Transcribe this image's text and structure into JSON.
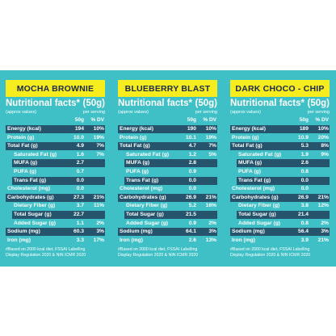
{
  "header": {
    "nutritional_facts": "Nutritional facts*",
    "serving": "(50g)",
    "approx": "(approx values)",
    "per_serving": "per serving",
    "col_amount": "50g",
    "col_dv": "% DV"
  },
  "footnote": {
    "line1": "#Based on 2000 kcal diet, FSSAI Labelling",
    "line2": "Display Regulation 2020 & NIN ICMR 2020"
  },
  "colors": {
    "band": "#3fc0c6",
    "title_bg": "#f6ec1e",
    "title_text": "#1a2a4a",
    "row_bar": "#26546c",
    "text": "#ffffff"
  },
  "products": [
    {
      "name": "MOCHA BROWNIE",
      "rows": [
        {
          "label": "Energy (kcal)",
          "value": "194",
          "dv": "10%"
        },
        {
          "label": "Protein (g)",
          "value": "10.0",
          "dv": "19%"
        },
        {
          "label": "Total Fat (g)",
          "value": "4.9",
          "dv": "7%"
        },
        {
          "label": "Saturated Fat (g)",
          "value": "1.6",
          "dv": "7%"
        },
        {
          "label": "MUFA (g)",
          "value": "2.7",
          "dv": ""
        },
        {
          "label": "PUFA (g)",
          "value": "0.7",
          "dv": ""
        },
        {
          "label": "Trans Fat (g)",
          "value": "0.0",
          "dv": ""
        },
        {
          "label": "Cholesterol (mg)",
          "value": "0.0",
          "dv": ""
        },
        {
          "label": "Carbohydrates (g)",
          "value": "27.3",
          "dv": "21%"
        },
        {
          "label": "Dietary Fiber (g)",
          "value": "3.7",
          "dv": "11%"
        },
        {
          "label": "Total Sugar (g)",
          "value": "22.7",
          "dv": ""
        },
        {
          "label": "Added Sugar (g)",
          "value": "1.1",
          "dv": "2%"
        },
        {
          "label": "Sodium (mg)",
          "value": "60.3",
          "dv": "3%"
        },
        {
          "label": "Iron (mg)",
          "value": "3.3",
          "dv": "17%"
        }
      ]
    },
    {
      "name": "BLUEBERRY BLAST",
      "rows": [
        {
          "label": "Energy (kcal)",
          "value": "190",
          "dv": "10%"
        },
        {
          "label": "Protein (g)",
          "value": "10.1",
          "dv": "19%"
        },
        {
          "label": "Total Fat (g)",
          "value": "4.7",
          "dv": "7%"
        },
        {
          "label": "Saturated Fat (g)",
          "value": "1.2",
          "dv": "5%"
        },
        {
          "label": "MUFA (g)",
          "value": "2.8",
          "dv": ""
        },
        {
          "label": "PUFA (g)",
          "value": "0.9",
          "dv": ""
        },
        {
          "label": "Trans Fat (g)",
          "value": "0.0",
          "dv": ""
        },
        {
          "label": "Cholesterol (mg)",
          "value": "0.0",
          "dv": ""
        },
        {
          "label": "Carbohydrates (g)",
          "value": "26.9",
          "dv": "21%"
        },
        {
          "label": "Dietary Fiber (g)",
          "value": "5.2",
          "dv": "16%"
        },
        {
          "label": "Total Sugar (g)",
          "value": "21.5",
          "dv": ""
        },
        {
          "label": "Added Sugar (g)",
          "value": "0.9",
          "dv": "2%"
        },
        {
          "label": "Sodium (mg)",
          "value": "64.1",
          "dv": "3%"
        },
        {
          "label": "Iron (mg)",
          "value": "2.6",
          "dv": "13%"
        }
      ]
    },
    {
      "name": "DARK CHOCO - CHIP",
      "rows": [
        {
          "label": "Energy (kcal)",
          "value": "189",
          "dv": "10%"
        },
        {
          "label": "Protein (g)",
          "value": "10.9",
          "dv": "20%"
        },
        {
          "label": "Total Fat (g)",
          "value": "5.3",
          "dv": "8%"
        },
        {
          "label": "Saturated Fat (g)",
          "value": "1.9",
          "dv": "9%"
        },
        {
          "label": "MUFA (g)",
          "value": "2.6",
          "dv": ""
        },
        {
          "label": "PUFA (g)",
          "value": "0.8",
          "dv": ""
        },
        {
          "label": "Trans Fat (g)",
          "value": "0.0",
          "dv": ""
        },
        {
          "label": "Cholesterol (mg)",
          "value": "0.0",
          "dv": ""
        },
        {
          "label": "Carbohydrates (g)",
          "value": "26.9",
          "dv": "21%"
        },
        {
          "label": "Dietary Fiber (g)",
          "value": "3.8",
          "dv": "12%"
        },
        {
          "label": "Total Sugar (g)",
          "value": "21.4",
          "dv": ""
        },
        {
          "label": "Added Sugar (g)",
          "value": "0.8",
          "dv": "2%"
        },
        {
          "label": "Sodium (mg)",
          "value": "56.4",
          "dv": "3%"
        },
        {
          "label": "Iron (mg)",
          "value": "3.9",
          "dv": "21%"
        }
      ]
    }
  ]
}
